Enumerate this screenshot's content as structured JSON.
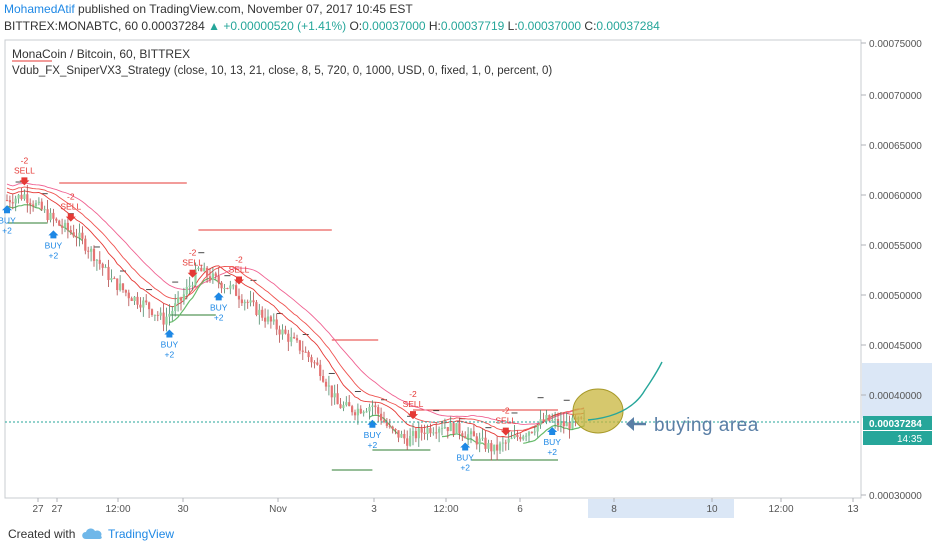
{
  "header": {
    "author": "MohamedAtif",
    "published_text": "published on TradingView.com, November 07, 2017 10:45 EST",
    "symbol_line": "BITTREX:MONABTC, 60",
    "last": "0.00037284",
    "change": "+0.00000520 (+1.41%)",
    "o_label": "O:",
    "o_value": "0.00037000",
    "h_label": "H:",
    "h_value": "0.00037719",
    "l_label": "L:",
    "l_value": "0.00037000",
    "c_label": "C:",
    "c_value": "0.00037284"
  },
  "legend": {
    "title": "MonaCoin / Bitcoin, 60, BITTREX",
    "study": "Vdub_FX_SniperVX3_Strategy (close, 10, 13, 21, close, 8, 5, 720, 0, 1000, USD, 0, fixed, 1, 0, percent, 0)"
  },
  "footer": {
    "created_with": "Created with",
    "brand": "TradingView"
  },
  "annotation": {
    "text": "buying area"
  },
  "price_badge": {
    "price": "0.00037284",
    "countdown": "14:35"
  },
  "colors": {
    "up": "#26a69a",
    "down": "#ef5350",
    "candle_fill": "#e57373",
    "sell": "#e53935",
    "buy": "#1e88e5",
    "ma_red": "#e53935",
    "ma_green": "#66bb6a",
    "price_line": "#26a69a",
    "ellipse_fill": "#c8b63c",
    "annotation": "#5a7fa6"
  },
  "chart_data": {
    "type": "candlestick",
    "symbol": "MONABTC",
    "exchange": "BITTREX",
    "timeframe": "60",
    "y_ticks": [
      "0.00075000",
      "0.00070000",
      "0.00065000",
      "0.00060000",
      "0.00055000",
      "0.00050000",
      "0.00045000",
      "0.00040000",
      "0.00030000"
    ],
    "x_ticks": [
      "27",
      "27",
      "12:00",
      "30",
      "Nov",
      "3",
      "12:00",
      "6",
      "8",
      "10",
      "12:00",
      "13"
    ],
    "ylim": [
      0.0003,
      0.00075
    ],
    "approx_close_path": [
      {
        "i": 0,
        "v": 0.000595
      },
      {
        "i": 6,
        "v": 0.0006
      },
      {
        "i": 12,
        "v": 0.000585
      },
      {
        "i": 18,
        "v": 0.00057
      },
      {
        "i": 24,
        "v": 0.00056
      },
      {
        "i": 30,
        "v": 0.00054
      },
      {
        "i": 36,
        "v": 0.000515
      },
      {
        "i": 42,
        "v": 0.0005
      },
      {
        "i": 48,
        "v": 0.00049
      },
      {
        "i": 54,
        "v": 0.000475
      },
      {
        "i": 60,
        "v": 0.000495
      },
      {
        "i": 66,
        "v": 0.000525
      },
      {
        "i": 72,
        "v": 0.000515
      },
      {
        "i": 78,
        "v": 0.000505
      },
      {
        "i": 84,
        "v": 0.00049
      },
      {
        "i": 90,
        "v": 0.000475
      },
      {
        "i": 96,
        "v": 0.00046
      },
      {
        "i": 102,
        "v": 0.000445
      },
      {
        "i": 108,
        "v": 0.000425
      },
      {
        "i": 114,
        "v": 0.00039
      },
      {
        "i": 120,
        "v": 0.000385
      },
      {
        "i": 126,
        "v": 0.00039
      },
      {
        "i": 132,
        "v": 0.000365
      },
      {
        "i": 138,
        "v": 0.000355
      },
      {
        "i": 144,
        "v": 0.000365
      },
      {
        "i": 150,
        "v": 0.00037
      },
      {
        "i": 156,
        "v": 0.000365
      },
      {
        "i": 162,
        "v": 0.000355
      },
      {
        "i": 168,
        "v": 0.000345
      },
      {
        "i": 174,
        "v": 0.000355
      },
      {
        "i": 180,
        "v": 0.000365
      },
      {
        "i": 186,
        "v": 0.000375
      },
      {
        "i": 192,
        "v": 0.00037
      },
      {
        "i": 198,
        "v": 0.000373
      }
    ],
    "signals": [
      {
        "type": "SELL",
        "label": "SELL",
        "value": "-2",
        "i": 6
      },
      {
        "type": "SELL",
        "label": "SELL",
        "value": "-2",
        "i": 22
      },
      {
        "type": "BUY",
        "label": "BUY",
        "value": "+2",
        "i": 0
      },
      {
        "type": "BUY",
        "label": "BUY",
        "value": "+2",
        "i": 16
      },
      {
        "type": "SELL",
        "label": "SELL",
        "value": "-2",
        "i": 64
      },
      {
        "type": "SELL",
        "label": "SELL",
        "value": "-2",
        "i": 80
      },
      {
        "type": "BUY",
        "label": "BUY",
        "value": "+2",
        "i": 56
      },
      {
        "type": "BUY",
        "label": "BUY",
        "value": "+2",
        "i": 73
      },
      {
        "type": "BUY",
        "label": "BUY",
        "value": "+2",
        "i": 126
      },
      {
        "type": "SELL",
        "label": "SELL",
        "value": "-2",
        "i": 140
      },
      {
        "type": "BUY",
        "label": "BUY",
        "value": "+2",
        "i": 158
      },
      {
        "type": "SELL",
        "label": "SELL",
        "value": "-2",
        "i": 172
      },
      {
        "type": "BUY",
        "label": "BUY",
        "value": "+2",
        "i": 188
      }
    ]
  }
}
